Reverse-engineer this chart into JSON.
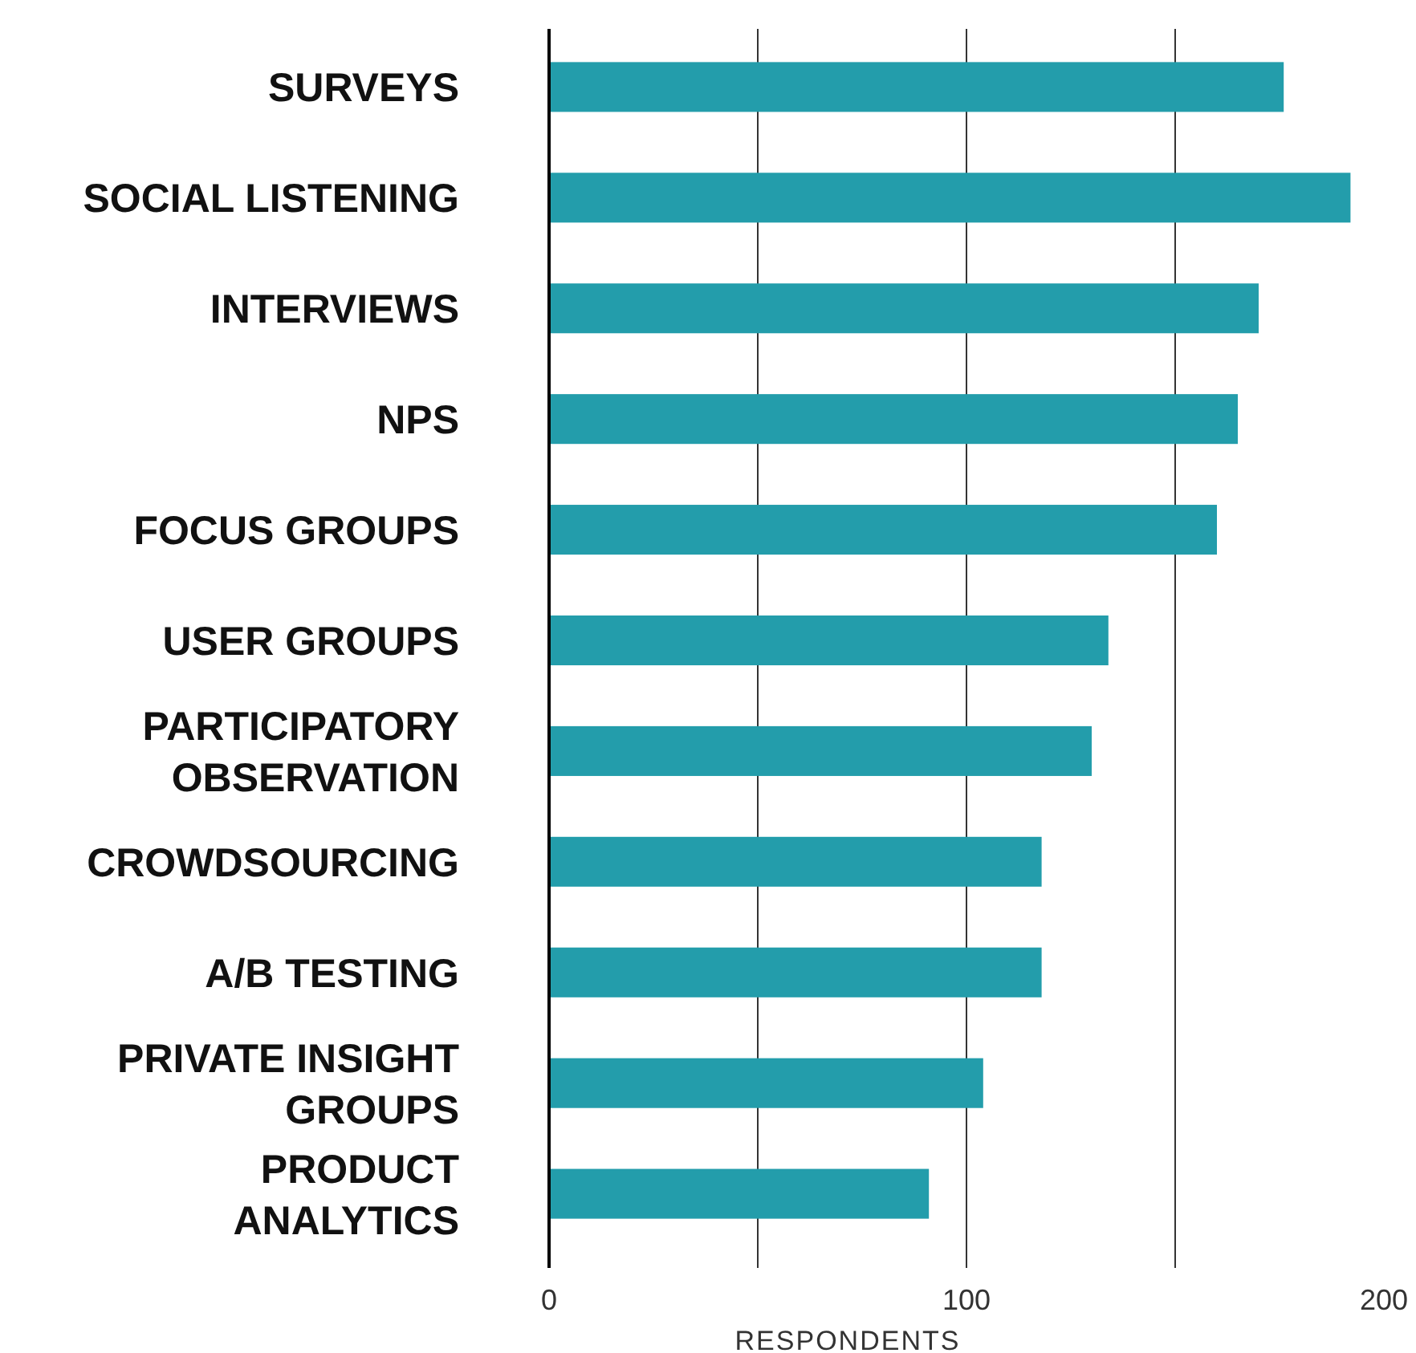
{
  "chart_data": {
    "type": "bar",
    "orientation": "horizontal",
    "xlabel": "RESPONDENTS",
    "categories": [
      "SURVEYS",
      "SOCIAL LISTENING",
      "INTERVIEWS",
      "NPS",
      "FOCUS GROUPS",
      "USER GROUPS",
      "PARTICIPATORY OBSERVATION",
      "CROWDSOURCING",
      "A/B TESTING",
      "PRIVATE INSIGHT GROUPS",
      "PRODUCT ANALYTICS"
    ],
    "values": [
      176,
      192,
      170,
      165,
      160,
      134,
      130,
      118,
      118,
      104,
      91
    ],
    "color": "#239dab",
    "xlim": [
      0,
      200
    ],
    "xticks": [
      0,
      {
        "value": 50,
        "label": null
      },
      100,
      {
        "value": 150,
        "label": null
      },
      200
    ],
    "grid": "x"
  }
}
